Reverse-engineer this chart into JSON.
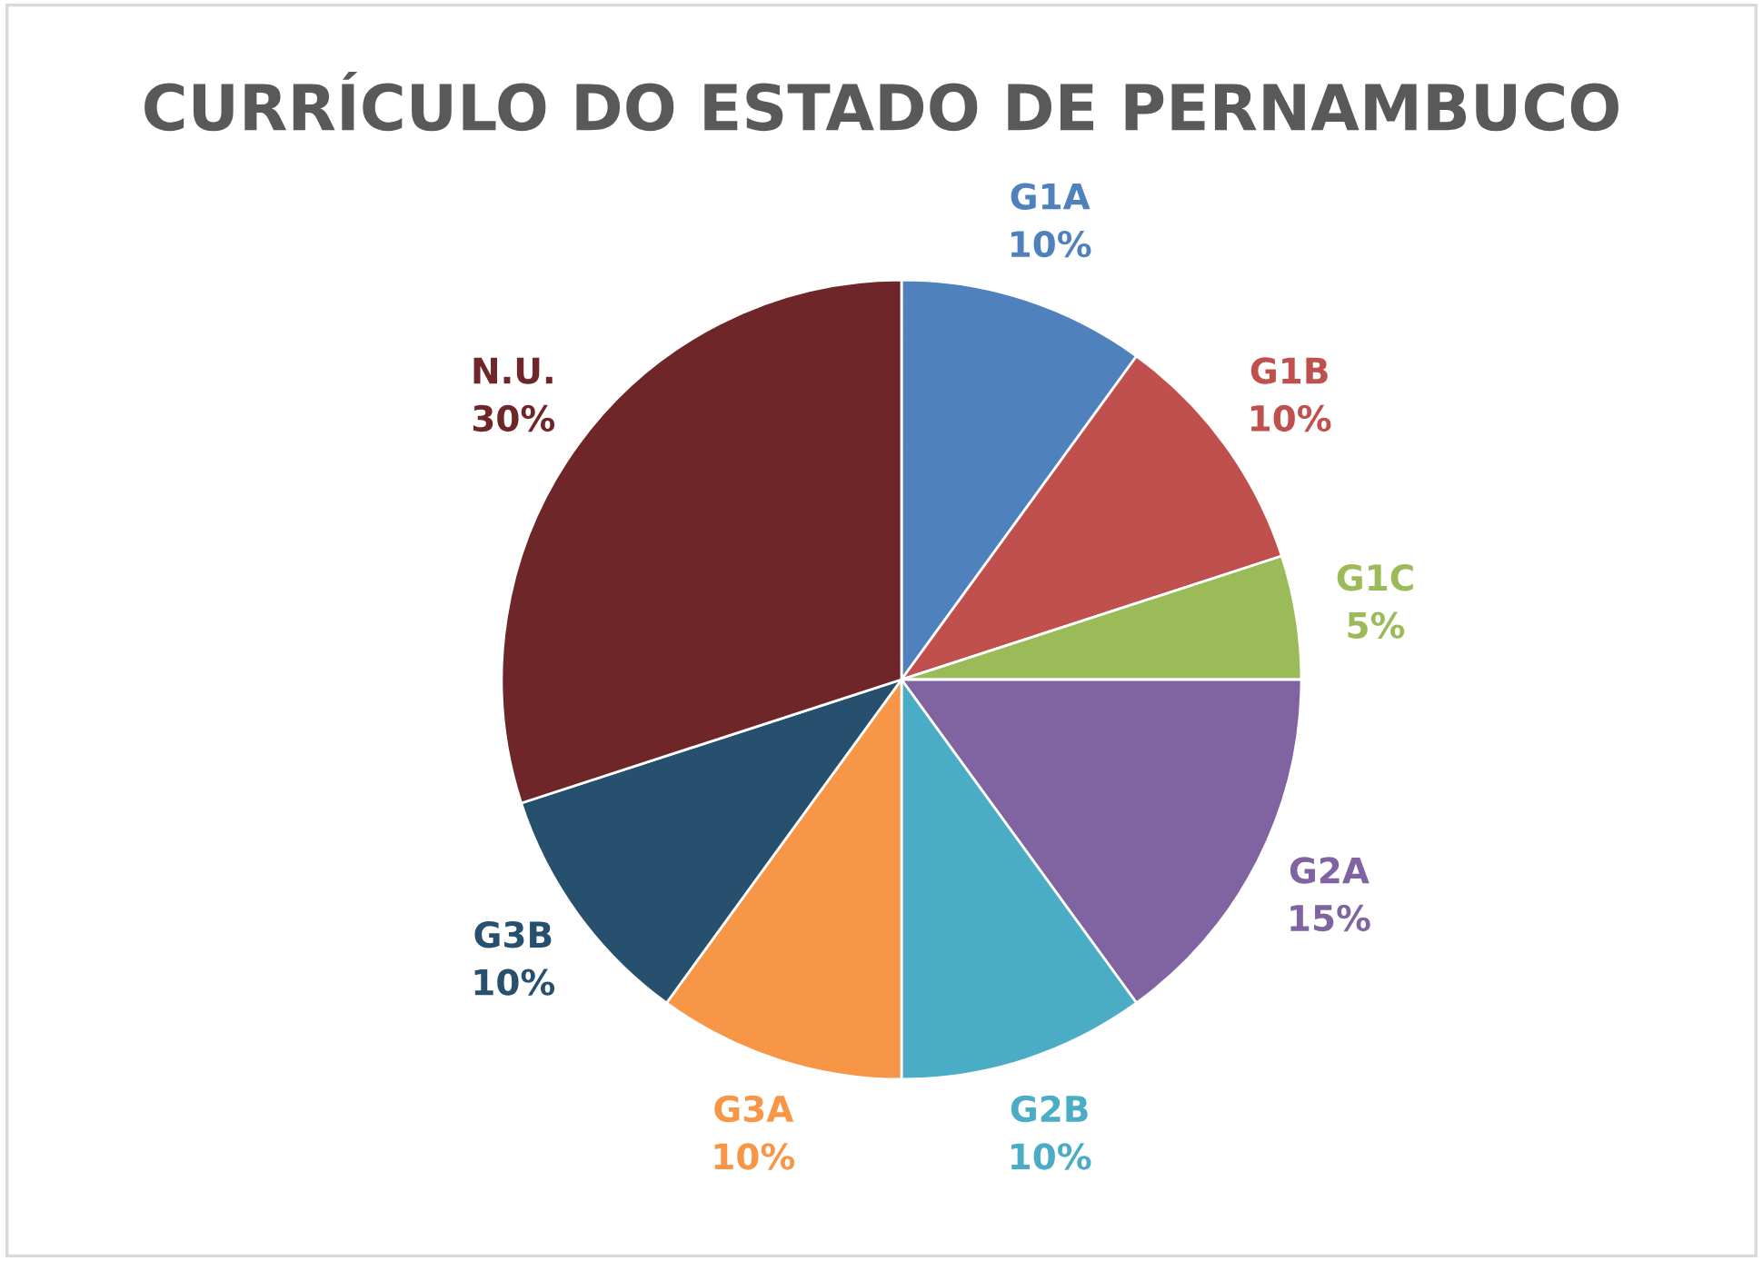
{
  "chart_data": {
    "type": "pie",
    "title": "CURRÍCULO DO ESTADO DE PERNAMBUCO",
    "categories": [
      "G1A",
      "G1B",
      "G1C",
      "G2A",
      "G2B",
      "G3A",
      "G3B",
      "N.U."
    ],
    "values": [
      10,
      10,
      5,
      15,
      10,
      10,
      10,
      30
    ],
    "value_labels": [
      "10%",
      "10%",
      "5%",
      "15%",
      "10%",
      "10%",
      "10%",
      "30%"
    ],
    "colors": [
      "#4f81bd",
      "#c0504d",
      "#9bbb59",
      "#8064a2",
      "#4bacc6",
      "#f79646",
      "#27506f",
      "#6f2628"
    ],
    "legend": false
  }
}
